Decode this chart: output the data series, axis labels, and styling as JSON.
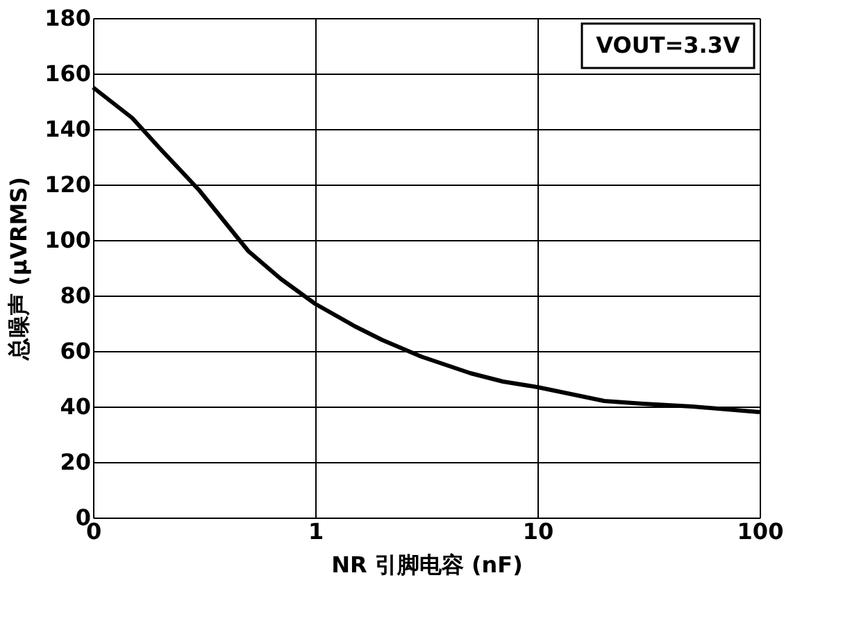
{
  "chart_data": {
    "type": "line",
    "xlabel": "NR 引脚电容 (nF)",
    "ylabel": "总噪声 (μVRMS)",
    "annotations": [
      "VOUT=3.3V"
    ],
    "x": [
      0.1,
      0.15,
      0.2,
      0.3,
      0.5,
      0.7,
      1,
      1.5,
      2,
      3,
      5,
      7,
      10,
      20,
      30,
      50,
      100
    ],
    "series": [
      {
        "color": "#000000",
        "values": [
          155,
          144,
          133,
          118,
          96,
          86,
          77,
          69,
          64,
          58,
          52,
          49,
          47,
          42,
          41,
          40,
          38
        ]
      }
    ],
    "log": "x",
    "xlim": [
      0.1,
      100
    ],
    "xticks": [
      {
        "value": 0.1,
        "label": "0"
      },
      1,
      10,
      100
    ],
    "ylim": [
      0,
      180
    ],
    "yticks": [
      0,
      20,
      40,
      60,
      80,
      100,
      120,
      140,
      160,
      180
    ],
    "grid": true,
    "line_style": "solid"
  }
}
